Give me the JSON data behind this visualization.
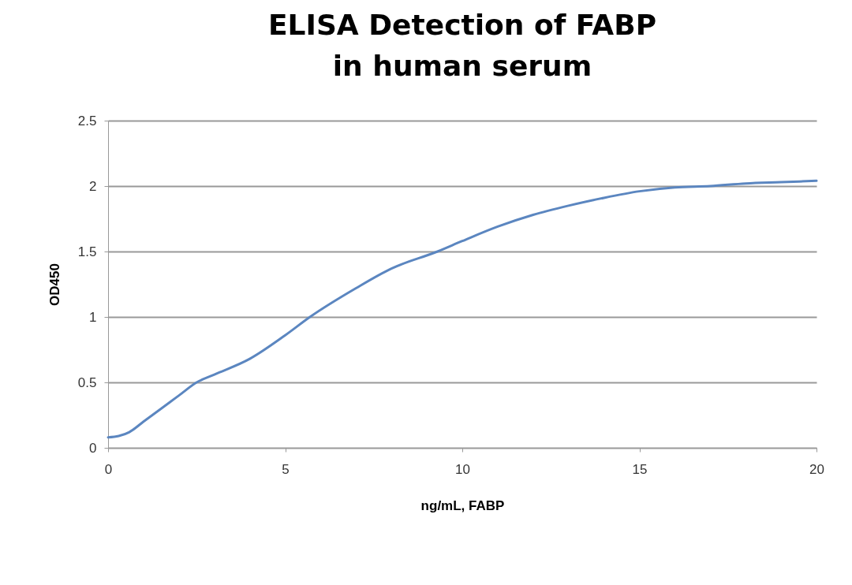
{
  "chart_data": {
    "type": "line",
    "title": "ELISA Detection of FABP in human serum",
    "xlabel": "ng/mL, FABP",
    "ylabel": "OD450",
    "x": [
      0,
      0.3,
      0.6,
      1,
      1.5,
      2,
      2.5,
      3,
      4,
      5,
      5.7,
      7,
      8,
      9.3,
      10,
      11,
      12,
      13,
      14,
      15,
      16,
      17,
      18,
      19,
      20
    ],
    "series": [
      {
        "color": "#5b86c0",
        "values": [
          0.08,
          0.09,
          0.12,
          0.2,
          0.3,
          0.4,
          0.5,
          0.56,
          0.68,
          0.86,
          1.0,
          1.22,
          1.37,
          1.5,
          1.58,
          1.69,
          1.78,
          1.85,
          1.91,
          1.96,
          1.99,
          2.0,
          2.02,
          2.03,
          2.04
        ]
      }
    ],
    "xlim": [
      0,
      20
    ],
    "xticks": [
      0,
      5,
      10,
      15,
      20
    ],
    "ylim": [
      0,
      2.5
    ],
    "yticks": [
      0,
      0.5,
      1,
      1.5,
      2,
      2.5
    ],
    "grid": "y",
    "marker": "none",
    "line_style": "solid"
  }
}
